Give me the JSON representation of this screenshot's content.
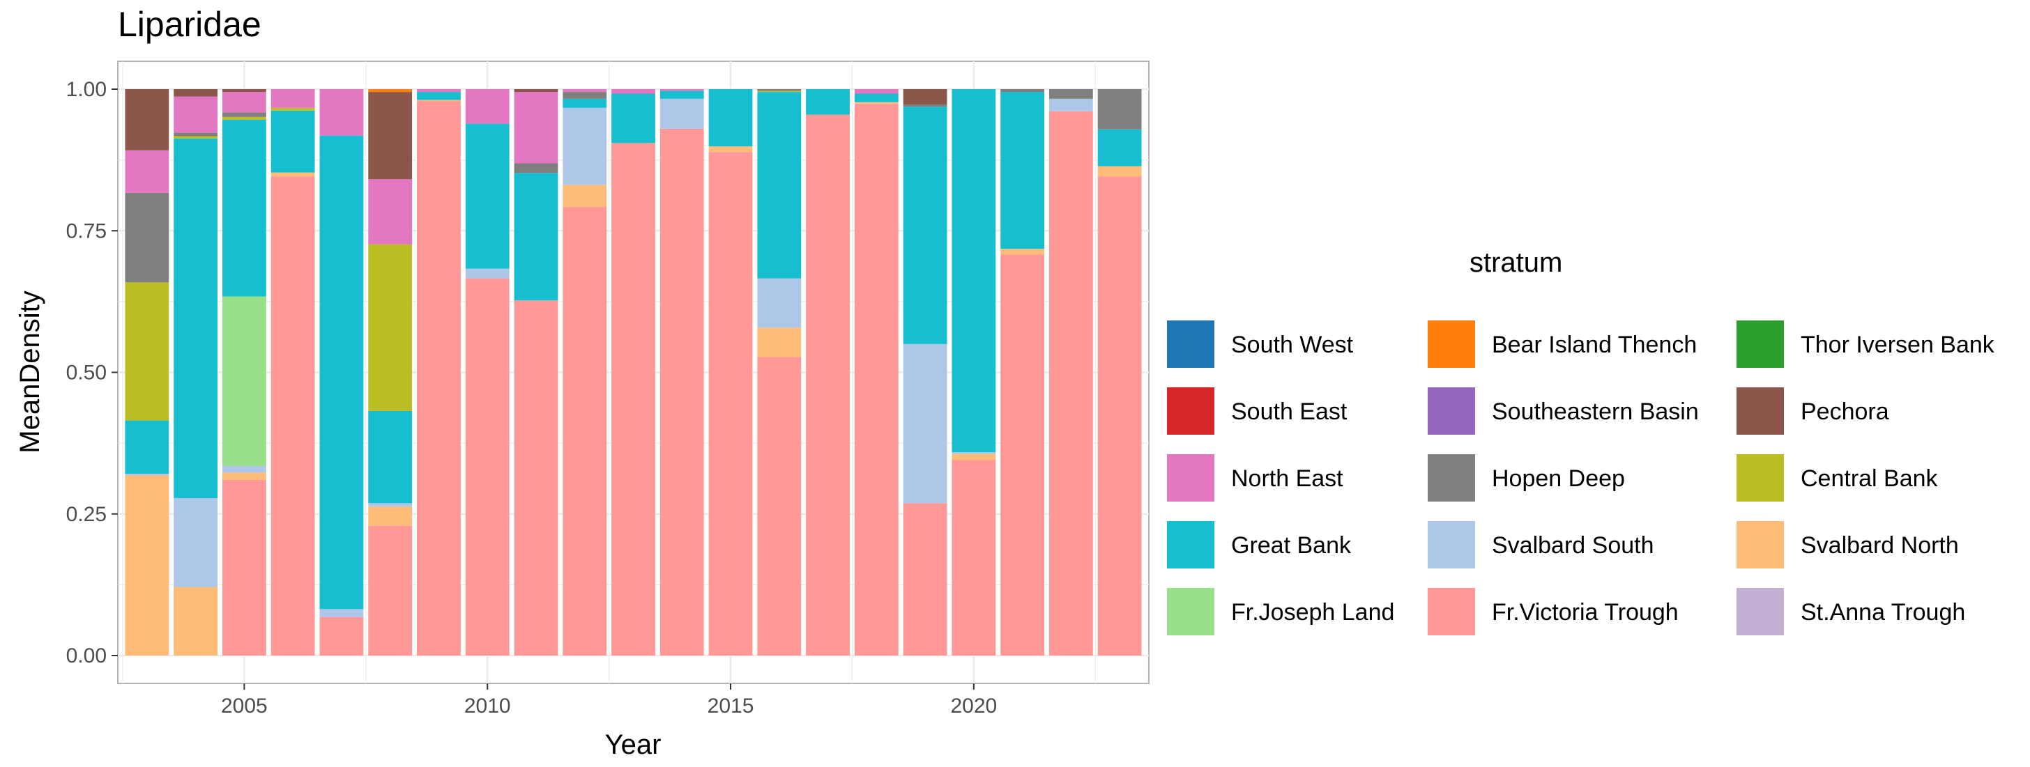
{
  "chart_data": {
    "type": "bar",
    "stacked": true,
    "title": "Liparidae",
    "xlabel": "Year",
    "ylabel": "MeanDensity",
    "ylim": [
      0,
      1
    ],
    "xlim": [
      2002.4,
      2023.6
    ],
    "x_ticks": [
      2005,
      2010,
      2015,
      2020
    ],
    "y_ticks": [
      "0.00",
      "0.25",
      "0.50",
      "0.75",
      "1.00"
    ],
    "grid": true,
    "legend_title": "stratum",
    "legend_placement": "right",
    "x": [
      2003,
      2004,
      2005,
      2006,
      2007,
      2008,
      2009,
      2010,
      2011,
      2012,
      2013,
      2014,
      2015,
      2016,
      2017,
      2018,
      2019,
      2020,
      2021,
      2022,
      2023
    ],
    "series": [
      {
        "name": "South West",
        "color": "#1f77b4",
        "values": [
          0,
          0,
          0,
          0,
          0,
          0,
          0,
          0,
          0,
          0,
          0,
          0,
          0,
          0,
          0,
          0,
          0,
          0,
          0,
          0,
          0
        ]
      },
      {
        "name": "South East",
        "color": "#d62728",
        "values": [
          0,
          0,
          0,
          0,
          0,
          0,
          0,
          0,
          0,
          0,
          0,
          0,
          0,
          0,
          0,
          0,
          0,
          0,
          0,
          0,
          0
        ]
      },
      {
        "name": "North East",
        "color": "#e377c2",
        "values": [
          0.075,
          0.064,
          0.036,
          0.033,
          0.082,
          0.115,
          0.005,
          0.061,
          0.126,
          0.005,
          0.008,
          0.003,
          0,
          0,
          0,
          0.008,
          0,
          0,
          0,
          0,
          0
        ]
      },
      {
        "name": "Great Bank",
        "color": "#17becf",
        "values": [
          0.094,
          0.635,
          0.312,
          0.109,
          0.836,
          0.163,
          0.014,
          0.256,
          0.225,
          0.016,
          0.087,
          0.014,
          0.101,
          0.329,
          0.045,
          0.015,
          0.419,
          0.641,
          0.277,
          0,
          0.065
        ]
      },
      {
        "name": "Fr.Joseph Land",
        "color": "#98df8a",
        "values": [
          0,
          0,
          0.299,
          0,
          0,
          0,
          0,
          0,
          0,
          0,
          0,
          0,
          0,
          0,
          0,
          0,
          0,
          0,
          0,
          0,
          0
        ]
      },
      {
        "name": "Bear Island Thench",
        "color": "#ff7f0e",
        "values": [
          0,
          0,
          0,
          0,
          0,
          0.005,
          0,
          0,
          0,
          0,
          0,
          0,
          0,
          0,
          0,
          0,
          0,
          0,
          0,
          0,
          0
        ]
      },
      {
        "name": "Southeastern Basin",
        "color": "#9467bd",
        "values": [
          0,
          0,
          0,
          0,
          0,
          0,
          0,
          0,
          0,
          0,
          0,
          0,
          0,
          0,
          0,
          0,
          0,
          0,
          0,
          0,
          0
        ]
      },
      {
        "name": "Hopen Deep",
        "color": "#7f7f7f",
        "values": [
          0.158,
          0.006,
          0.008,
          0,
          0,
          0,
          0,
          0,
          0.017,
          0.012,
          0,
          0,
          0,
          0.003,
          0,
          0,
          0.004,
          0,
          0.005,
          0.017,
          0.071
        ]
      },
      {
        "name": "Svalbard South",
        "color": "#aec7e8",
        "values": [
          0.003,
          0.157,
          0.012,
          0,
          0.014,
          0.006,
          0,
          0.017,
          0,
          0.136,
          0,
          0.053,
          0,
          0.087,
          0,
          0,
          0.281,
          0.003,
          0,
          0.022,
          0
        ]
      },
      {
        "name": "Fr.Victoria Trough",
        "color": "#ff9896",
        "values": [
          0,
          0,
          0.31,
          0.846,
          0.068,
          0.229,
          0.979,
          0.666,
          0.627,
          0.792,
          0.905,
          0.93,
          0.889,
          0.527,
          0.955,
          0.974,
          0.269,
          0.345,
          0.708,
          0.961,
          0.846
        ]
      },
      {
        "name": "Thor Iversen Bank",
        "color": "#2ca02c",
        "values": [
          0,
          0,
          0,
          0,
          0,
          0,
          0,
          0,
          0,
          0,
          0,
          0,
          0,
          0,
          0,
          0,
          0,
          0,
          0,
          0,
          0
        ]
      },
      {
        "name": "Pechora",
        "color": "#8c564b",
        "values": [
          0.108,
          0.013,
          0.005,
          0,
          0,
          0.154,
          0,
          0,
          0.005,
          0,
          0,
          0,
          0,
          0,
          0,
          0,
          0.027,
          0,
          0,
          0,
          0
        ]
      },
      {
        "name": "Central Bank",
        "color": "#bcbd22",
        "values": [
          0.244,
          0.004,
          0.005,
          0.005,
          0,
          0.294,
          0,
          0,
          0,
          0,
          0,
          0,
          0,
          0.002,
          0,
          0,
          0,
          0,
          0,
          0,
          0
        ]
      },
      {
        "name": "Svalbard North",
        "color": "#ffbb78",
        "values": [
          0.318,
          0.121,
          0.013,
          0.007,
          0,
          0.034,
          0.002,
          0,
          0,
          0.039,
          0,
          0,
          0.01,
          0.052,
          0,
          0.003,
          0,
          0.011,
          0.01,
          0,
          0.018
        ]
      },
      {
        "name": "St.Anna Trough",
        "color": "#c5b0d5",
        "values": [
          0,
          0,
          0,
          0,
          0,
          0,
          0,
          0,
          0,
          0,
          0,
          0,
          0,
          0,
          0,
          0,
          0,
          0,
          0,
          0,
          0
        ]
      }
    ]
  }
}
